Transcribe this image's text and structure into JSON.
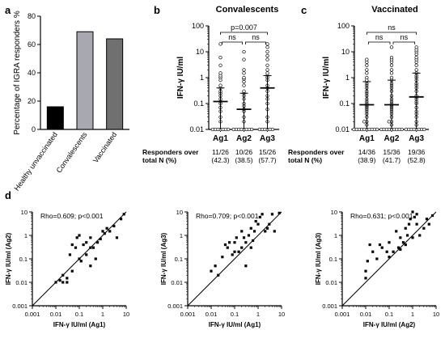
{
  "panel_letters": {
    "a": "a",
    "b": "b",
    "c": "c",
    "d": "d"
  },
  "chart_data": [
    {
      "panel": "a",
      "type": "bar",
      "ylabel": "Percentage of IGRA responders %",
      "ylim": [
        0,
        80
      ],
      "yticks": [
        0,
        20,
        40,
        60,
        80
      ],
      "categories": [
        "Healthy unvaccinated",
        "Convalescents",
        "Vaccinated"
      ],
      "values": [
        16,
        69,
        64
      ],
      "colors": [
        "#000000",
        "#a8a8b0",
        "#707070"
      ]
    },
    {
      "panel": "b",
      "type": "scatter",
      "title": "Convalescents",
      "ylabel": "IFN-γ IU/ml",
      "yscale": "log",
      "ylim": [
        0.01,
        100
      ],
      "yticks": [
        "0.01",
        "0.1",
        "1",
        "10",
        "100"
      ],
      "categories": [
        "Ag1",
        "Ag2",
        "Ag3"
      ],
      "medians": [
        0.12,
        0.06,
        0.4
      ],
      "iqr": [
        [
          0.01,
          0.4
        ],
        [
          0.01,
          0.25
        ],
        [
          0.01,
          1.2
        ]
      ],
      "points": [
        [
          0.01,
          0.01,
          0.01,
          0.01,
          0.01,
          0.01,
          0.01,
          0.02,
          0.03,
          0.05,
          0.07,
          0.1,
          0.12,
          0.15,
          0.2,
          0.25,
          0.3,
          0.4,
          0.5,
          0.8,
          1,
          1.2,
          1.5,
          3,
          6,
          20
        ],
        [
          0.01,
          0.01,
          0.01,
          0.01,
          0.01,
          0.01,
          0.01,
          0.01,
          0.02,
          0.03,
          0.05,
          0.06,
          0.08,
          0.1,
          0.15,
          0.2,
          0.25,
          0.3,
          0.5,
          0.7,
          0.9,
          1,
          1.5,
          2,
          5,
          10
        ],
        [
          0.01,
          0.01,
          0.01,
          0.01,
          0.01,
          0.01,
          0.02,
          0.03,
          0.06,
          0.1,
          0.15,
          0.2,
          0.3,
          0.4,
          0.5,
          0.8,
          1,
          1.2,
          1.5,
          2,
          3,
          5,
          7,
          10,
          15,
          20
        ]
      ],
      "comparisons": [
        {
          "from": 1,
          "to": 2,
          "label": "ns"
        },
        {
          "from": 2,
          "to": 3,
          "label": "ns"
        },
        {
          "from": 1,
          "to": 3,
          "label": "p=0.007"
        }
      ],
      "responders_label_lines": [
        "Responders over",
        "total N (%)"
      ],
      "responders": [
        [
          "11/26",
          "(42.3)"
        ],
        [
          "10/26",
          "(38.5)"
        ],
        [
          "15/26",
          "(57.7)"
        ]
      ]
    },
    {
      "panel": "c",
      "type": "scatter",
      "title": "Vaccinated",
      "ylabel": "IFN-γ IU/ml",
      "yscale": "log",
      "ylim": [
        0.01,
        100
      ],
      "yticks": [
        "0.01",
        "0.1",
        "1",
        "10",
        "100"
      ],
      "categories": [
        "Ag1",
        "Ag2",
        "Ag3"
      ],
      "medians": [
        0.09,
        0.09,
        0.18
      ],
      "iqr": [
        [
          0.01,
          0.7
        ],
        [
          0.01,
          0.8
        ],
        [
          0.01,
          1.5
        ]
      ],
      "points": [
        [
          0.01,
          0.01,
          0.01,
          0.01,
          0.01,
          0.01,
          0.01,
          0.01,
          0.01,
          0.01,
          0.015,
          0.02,
          0.02,
          0.03,
          0.04,
          0.05,
          0.06,
          0.07,
          0.08,
          0.09,
          0.1,
          0.12,
          0.15,
          0.2,
          0.25,
          0.3,
          0.4,
          0.5,
          0.6,
          0.8,
          1,
          1.5,
          2,
          3,
          4,
          5
        ],
        [
          0.01,
          0.01,
          0.01,
          0.01,
          0.01,
          0.01,
          0.01,
          0.01,
          0.01,
          0.015,
          0.02,
          0.02,
          0.03,
          0.04,
          0.05,
          0.06,
          0.07,
          0.08,
          0.09,
          0.1,
          0.12,
          0.15,
          0.2,
          0.3,
          0.4,
          0.5,
          0.6,
          0.8,
          1,
          1.5,
          2,
          3,
          4,
          5,
          6,
          15
        ],
        [
          0.01,
          0.01,
          0.01,
          0.01,
          0.01,
          0.01,
          0.01,
          0.01,
          0.015,
          0.02,
          0.03,
          0.04,
          0.05,
          0.07,
          0.1,
          0.12,
          0.15,
          0.18,
          0.2,
          0.3,
          0.4,
          0.5,
          0.6,
          0.8,
          1,
          1.2,
          1.5,
          2,
          3,
          4,
          5,
          6,
          8,
          10,
          12,
          15
        ]
      ],
      "comparisons": [
        {
          "from": 1,
          "to": 2,
          "label": "ns"
        },
        {
          "from": 2,
          "to": 3,
          "label": "ns"
        },
        {
          "from": 1,
          "to": 3,
          "label": "ns"
        }
      ],
      "responders_label_lines": [
        "Responders over",
        "total N (%)"
      ],
      "responders": [
        [
          "14/36",
          "(38.9)"
        ],
        [
          "15/36",
          "(41.7)"
        ],
        [
          "19/36",
          "(52.8)"
        ]
      ]
    },
    {
      "panel": "d1",
      "type": "scatter",
      "annotation": "Rho=0.609; p<0.001",
      "xlabel": "IFN-γ IU/ml (Ag1)",
      "ylabel": "IFN-γ IU/ml (Ag2)",
      "xscale": "log",
      "yscale": "log",
      "xlim": [
        0.001,
        10
      ],
      "ylim": [
        0.001,
        10
      ],
      "ticks": [
        "0.001",
        "0.01",
        "0.1",
        "1",
        "10"
      ],
      "identity_line": true,
      "points": [
        [
          0.01,
          0.01
        ],
        [
          0.015,
          0.012
        ],
        [
          0.02,
          0.01
        ],
        [
          0.03,
          0.01
        ],
        [
          0.03,
          0.015
        ],
        [
          0.02,
          0.02
        ],
        [
          0.05,
          0.03
        ],
        [
          0.04,
          0.15
        ],
        [
          0.05,
          0.4
        ],
        [
          0.07,
          0.3
        ],
        [
          0.08,
          0.8
        ],
        [
          0.1,
          1
        ],
        [
          0.1,
          0.1
        ],
        [
          0.12,
          0.08
        ],
        [
          0.15,
          0.4
        ],
        [
          0.2,
          0.15
        ],
        [
          0.2,
          0.5
        ],
        [
          0.3,
          0.8
        ],
        [
          0.3,
          0.3
        ],
        [
          0.3,
          0.05
        ],
        [
          0.4,
          0.3
        ],
        [
          0.5,
          0.1
        ],
        [
          0.6,
          0.5
        ],
        [
          0.8,
          0.7
        ],
        [
          1,
          1.5
        ],
        [
          1.2,
          1.2
        ],
        [
          1.5,
          2
        ],
        [
          2,
          1.5
        ],
        [
          3,
          2.5
        ],
        [
          4,
          0.8
        ],
        [
          6,
          5
        ],
        [
          8,
          8
        ]
      ]
    },
    {
      "panel": "d2",
      "type": "scatter",
      "annotation": "Rho=0.709; p<0.001",
      "xlabel": "IFN-γ IU/ml (Ag1)",
      "ylabel": "IFN-γ IU/ml (Ag3)",
      "xscale": "log",
      "yscale": "log",
      "xlim": [
        0.001,
        10
      ],
      "ylim": [
        0.001,
        10
      ],
      "ticks": [
        "0.001",
        "0.01",
        "0.1",
        "1",
        "10"
      ],
      "identity_line": true,
      "points": [
        [
          0.01,
          0.03
        ],
        [
          0.015,
          0.05
        ],
        [
          0.02,
          0.02
        ],
        [
          0.03,
          0.12
        ],
        [
          0.04,
          0.4
        ],
        [
          0.05,
          0.3
        ],
        [
          0.06,
          0.5
        ],
        [
          0.08,
          0.15
        ],
        [
          0.1,
          0.2
        ],
        [
          0.1,
          0.5
        ],
        [
          0.12,
          0.8
        ],
        [
          0.15,
          0.2
        ],
        [
          0.2,
          1.5
        ],
        [
          0.2,
          0.3
        ],
        [
          0.25,
          0.8
        ],
        [
          0.3,
          0.5
        ],
        [
          0.3,
          0.05
        ],
        [
          0.4,
          1
        ],
        [
          0.5,
          0.3
        ],
        [
          0.5,
          2
        ],
        [
          0.6,
          0.6
        ],
        [
          0.7,
          1.5
        ],
        [
          0.8,
          4
        ],
        [
          1,
          3
        ],
        [
          1.2,
          6
        ],
        [
          1.5,
          8
        ],
        [
          2,
          1.5
        ],
        [
          2.5,
          2
        ],
        [
          3,
          3
        ],
        [
          4,
          8
        ],
        [
          5,
          1.5
        ],
        [
          8,
          9
        ]
      ]
    },
    {
      "panel": "d3",
      "type": "scatter",
      "annotation": "Rho=0.631; p<0.001",
      "xlabel": "IFN-γ IU/ml (Ag2)",
      "ylabel": "IFN-γ IU/ml (Ag3)",
      "xscale": "log",
      "yscale": "log",
      "xlim": [
        0.001,
        10
      ],
      "ylim": [
        0.001,
        10
      ],
      "ticks": [
        "0.001",
        "0.01",
        "0.1",
        "1",
        "10"
      ],
      "identity_line": true,
      "points": [
        [
          0.01,
          0.015
        ],
        [
          0.01,
          0.03
        ],
        [
          0.012,
          0.08
        ],
        [
          0.015,
          0.4
        ],
        [
          0.02,
          0.2
        ],
        [
          0.03,
          0.1
        ],
        [
          0.04,
          0.4
        ],
        [
          0.05,
          0.3
        ],
        [
          0.08,
          0.2
        ],
        [
          0.1,
          0.12
        ],
        [
          0.1,
          0.5
        ],
        [
          0.15,
          0.2
        ],
        [
          0.2,
          1.5
        ],
        [
          0.25,
          0.3
        ],
        [
          0.3,
          0.8
        ],
        [
          0.3,
          0.25
        ],
        [
          0.4,
          0.5
        ],
        [
          0.5,
          2
        ],
        [
          0.5,
          0.4
        ],
        [
          0.6,
          1
        ],
        [
          0.7,
          3
        ],
        [
          0.8,
          5
        ],
        [
          1,
          10
        ],
        [
          1,
          0.8
        ],
        [
          1.2,
          6
        ],
        [
          1.5,
          8
        ],
        [
          1.5,
          3
        ],
        [
          2,
          1
        ],
        [
          3,
          2
        ],
        [
          4,
          5
        ],
        [
          5,
          3
        ],
        [
          7,
          7
        ]
      ]
    }
  ]
}
